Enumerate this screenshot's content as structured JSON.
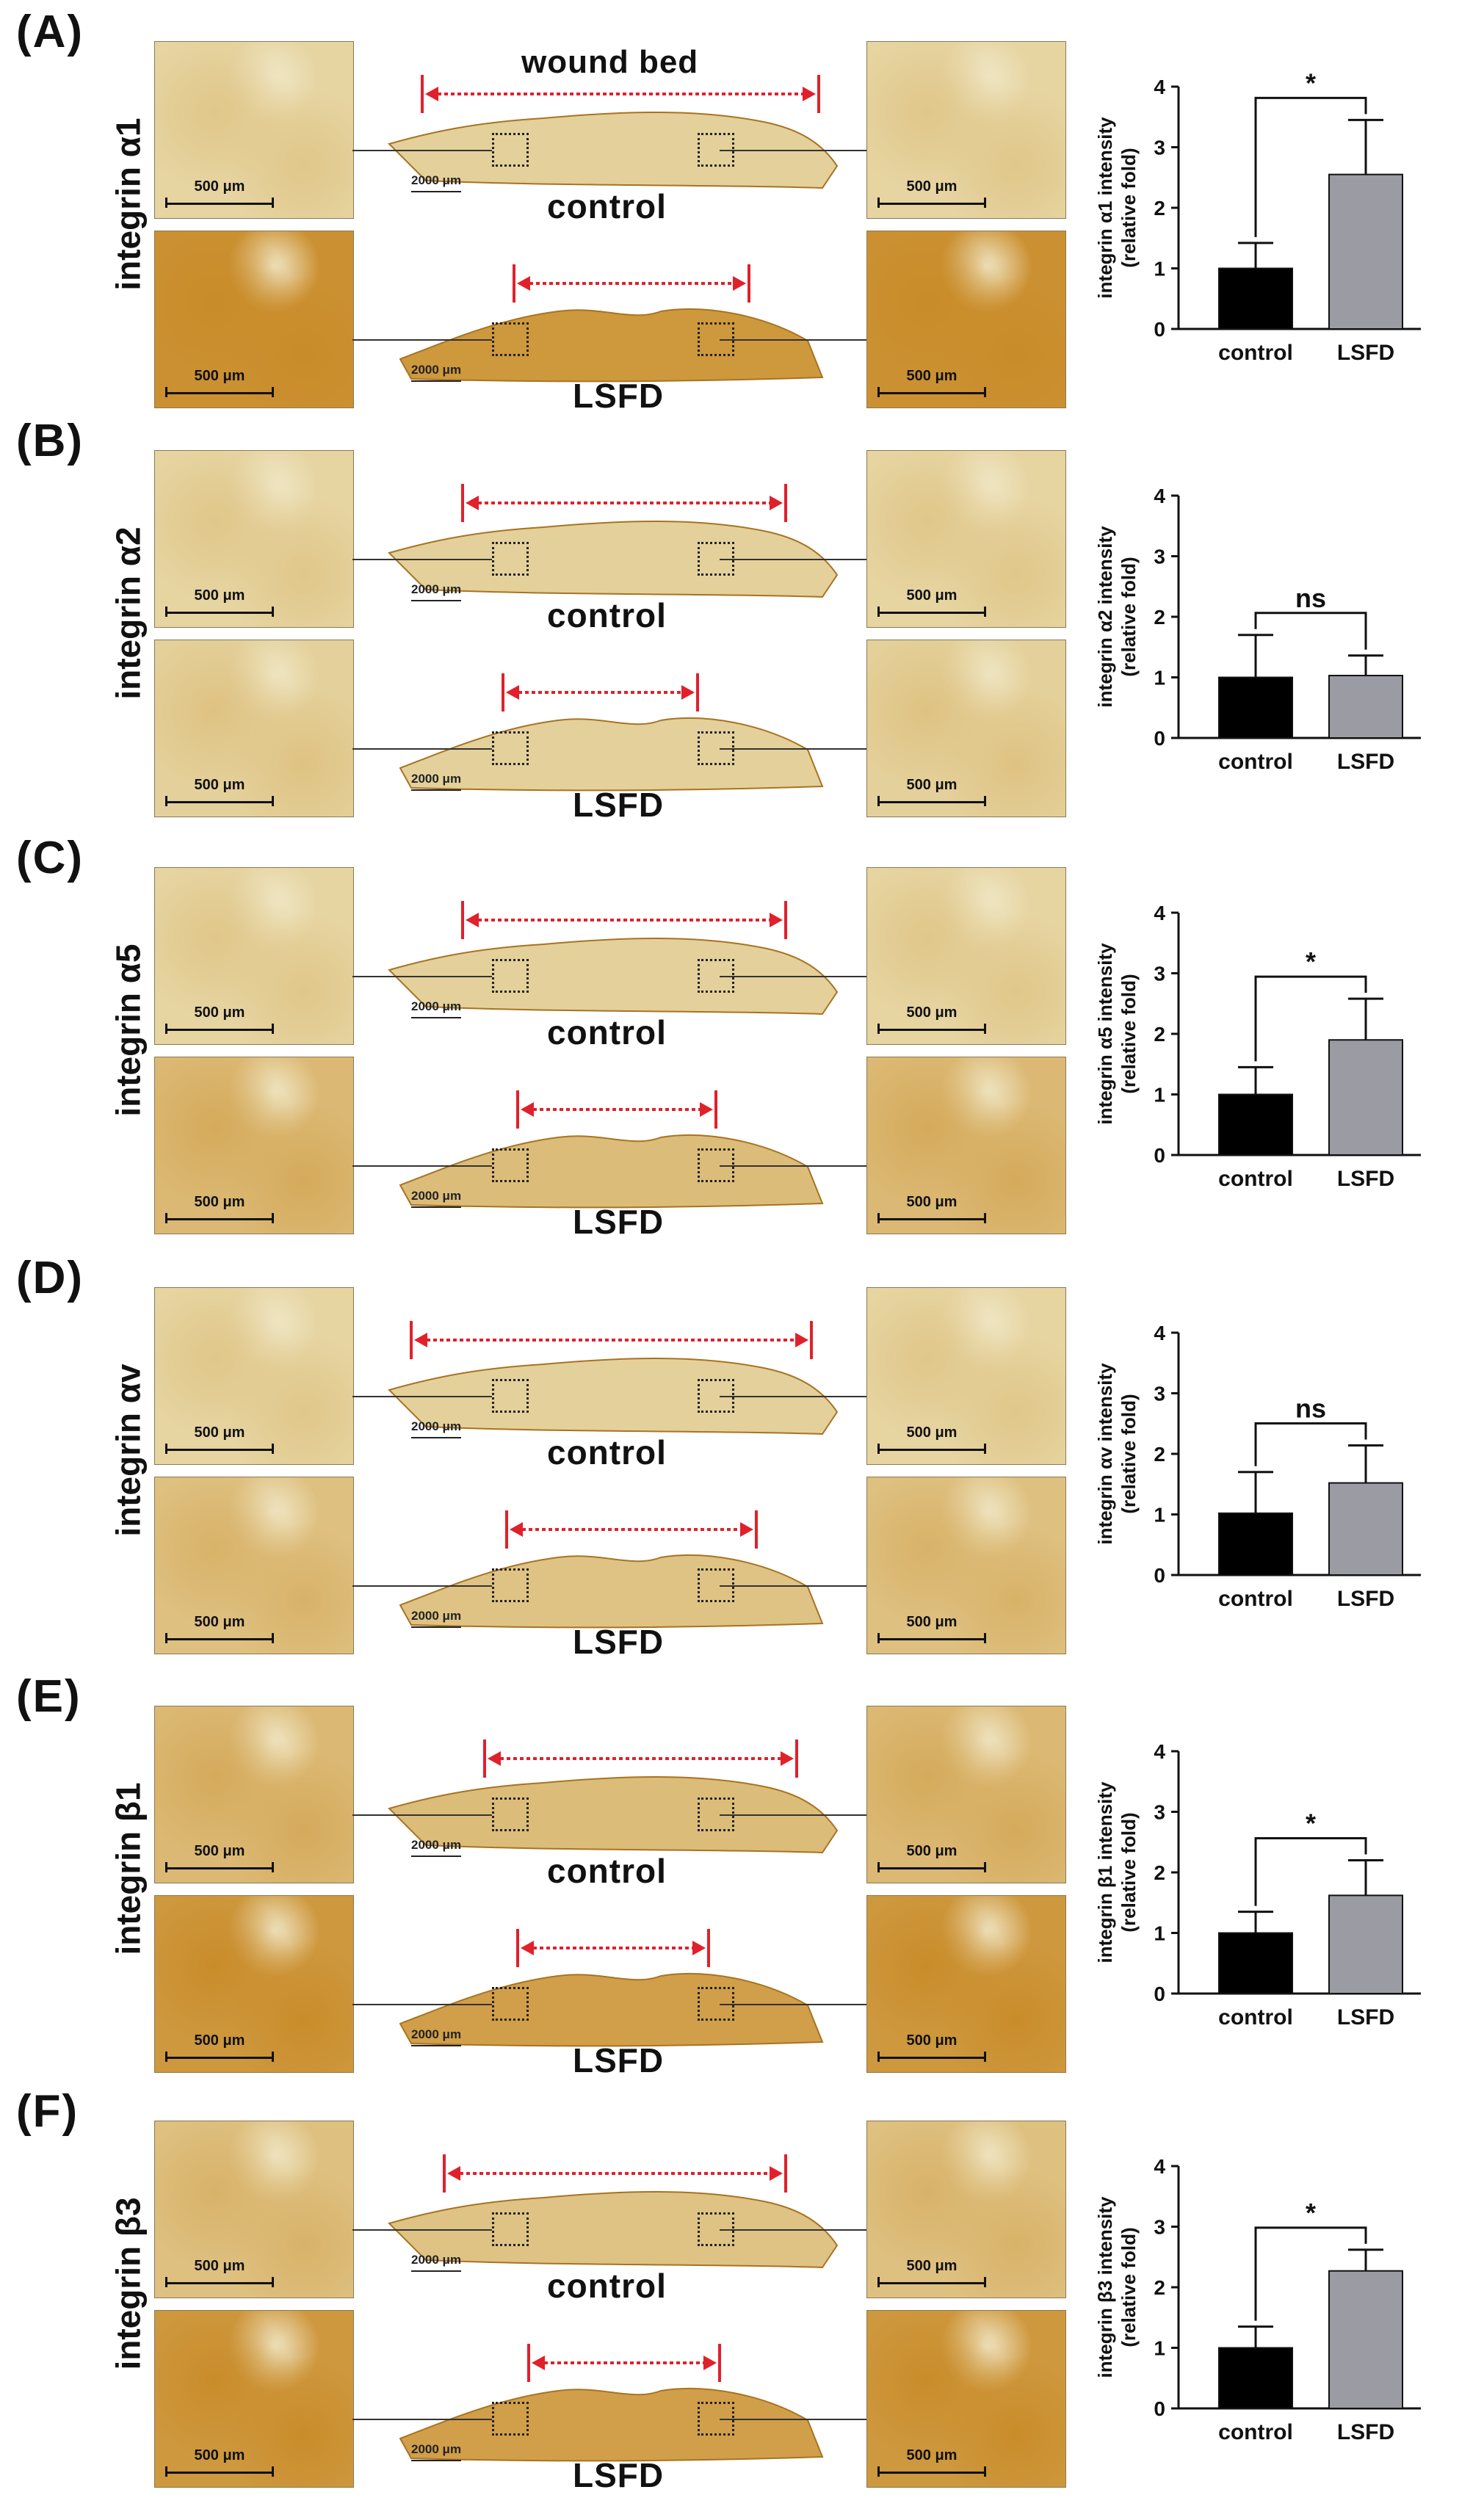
{
  "figure": {
    "wound_label": "wound bed",
    "conditions": [
      "control",
      "LSFD"
    ],
    "micro_scale": "500 μm",
    "overview_scale": "2000 μm",
    "colors": {
      "control_bar": "#000000",
      "lsfd_bar": "#9b9ba3",
      "arrow": "#e0212b",
      "stain_light": "#e9dcae",
      "stain_dark": "#c98c2a"
    }
  },
  "panels": [
    {
      "letter": "(A)",
      "protein": "integrin α1"
    },
    {
      "letter": "(B)",
      "protein": "integrin α2"
    },
    {
      "letter": "(C)",
      "protein": "integrin α5"
    },
    {
      "letter": "(D)",
      "protein": "integrin αv"
    },
    {
      "letter": "(E)",
      "protein": "integrin β1"
    },
    {
      "letter": "(F)",
      "protein": "integrin β3"
    }
  ],
  "chart_data": [
    {
      "type": "bar",
      "ylabel_line1": "integrin α1 intensity",
      "ylabel_line2": "(relative fold)",
      "categories": [
        "control",
        "LSFD"
      ],
      "values": [
        1.0,
        2.55
      ],
      "errors": [
        0.42,
        0.9
      ],
      "ylim": [
        0,
        4
      ],
      "yticks": [
        "0",
        "1",
        "2",
        "3",
        "4"
      ],
      "significance": "*"
    },
    {
      "type": "bar",
      "ylabel_line1": "integrin α2 intensity",
      "ylabel_line2": "(relative fold)",
      "categories": [
        "control",
        "LSFD"
      ],
      "values": [
        1.0,
        1.03
      ],
      "errors": [
        0.7,
        0.33
      ],
      "ylim": [
        0,
        4
      ],
      "yticks": [
        "0",
        "1",
        "2",
        "3",
        "4"
      ],
      "significance": "ns"
    },
    {
      "type": "bar",
      "ylabel_line1": "integrin α5 intensity",
      "ylabel_line2": "(relative fold)",
      "categories": [
        "control",
        "LSFD"
      ],
      "values": [
        1.0,
        1.9
      ],
      "errors": [
        0.45,
        0.68
      ],
      "ylim": [
        0,
        4
      ],
      "yticks": [
        "0",
        "1",
        "2",
        "3",
        "4"
      ],
      "significance": "*"
    },
    {
      "type": "bar",
      "ylabel_line1": "integrin αv intensity",
      "ylabel_line2": "(relative fold)",
      "categories": [
        "control",
        "LSFD"
      ],
      "values": [
        1.02,
        1.52
      ],
      "errors": [
        0.68,
        0.62
      ],
      "ylim": [
        0,
        4
      ],
      "yticks": [
        "0",
        "1",
        "2",
        "3",
        "4"
      ],
      "significance": "ns"
    },
    {
      "type": "bar",
      "ylabel_line1": "integrin β1 intensity",
      "ylabel_line2": "(relative fold)",
      "categories": [
        "control",
        "LSFD"
      ],
      "values": [
        1.0,
        1.62
      ],
      "errors": [
        0.35,
        0.58
      ],
      "ylim": [
        0,
        4
      ],
      "yticks": [
        "0",
        "1",
        "2",
        "3",
        "4"
      ],
      "significance": "*"
    },
    {
      "type": "bar",
      "ylabel_line1": "integrin β3 intensity",
      "ylabel_line2": "(relative fold)",
      "categories": [
        "control",
        "LSFD"
      ],
      "values": [
        1.0,
        2.27
      ],
      "errors": [
        0.35,
        0.35
      ],
      "ylim": [
        0,
        4
      ],
      "yticks": [
        "0",
        "1",
        "2",
        "3",
        "4"
      ],
      "significance": "*"
    }
  ]
}
